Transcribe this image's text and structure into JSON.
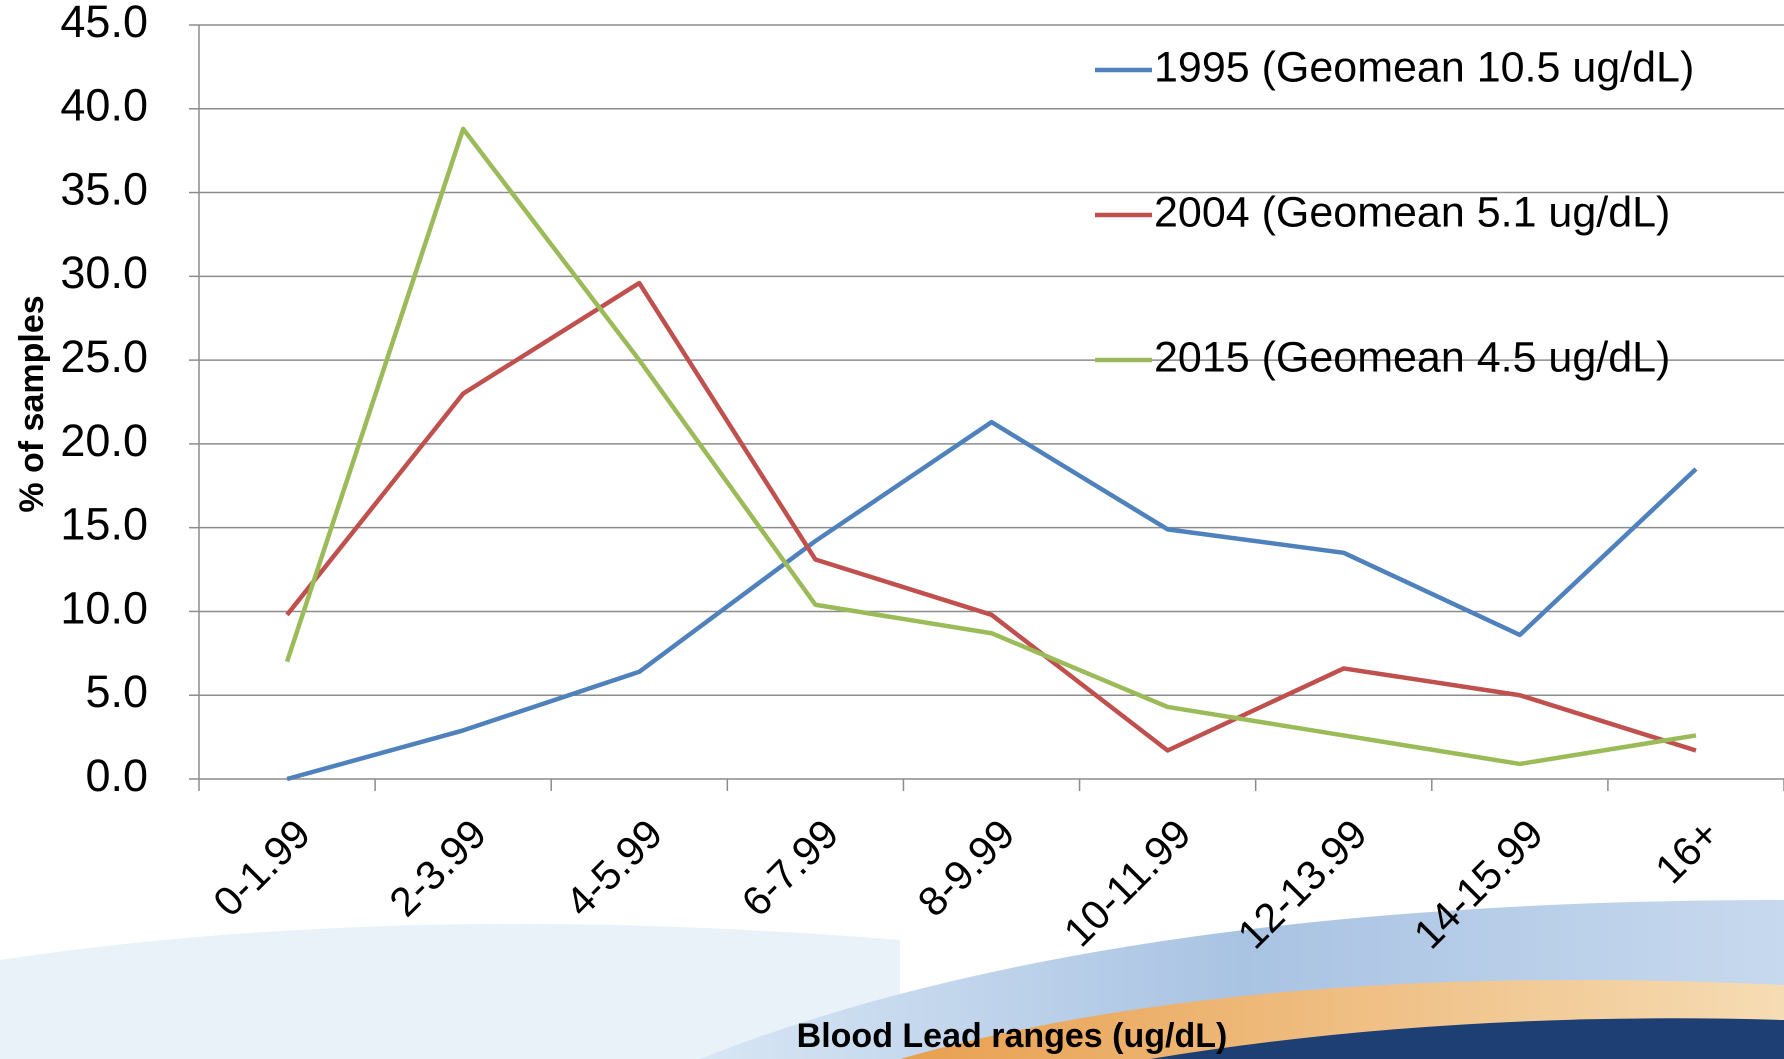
{
  "chart_data": {
    "type": "line",
    "x_label": "Blood Lead ranges (ug/dL)",
    "y_label": "% of samples",
    "categories": [
      "0-1.99",
      "2-3.99",
      "4-5.99",
      "6-7.99",
      "8-9.99",
      "10-11.99",
      "12-13.99",
      "14-15.99",
      "16+"
    ],
    "series": [
      {
        "name": "1995 (Geomean 10.5 ug/dL)",
        "color": "#4f81bd",
        "values": [
          0,
          2.9,
          6.4,
          14.2,
          21.3,
          14.9,
          13.5,
          8.6,
          18.5
        ]
      },
      {
        "name": "2004 (Geomean 5.1 ug/dL)",
        "color": "#c0504d",
        "values": [
          9.8,
          23.0,
          29.6,
          13.1,
          9.8,
          1.7,
          6.6,
          5.0,
          1.7
        ]
      },
      {
        "name": "2015 (Geomean 4.5 ug/dL)",
        "color": "#9bbb59",
        "values": [
          7.0,
          38.8,
          25.0,
          10.4,
          8.7,
          4.3,
          2.6,
          0.9,
          2.6
        ]
      }
    ],
    "ylim": [
      0,
      45
    ],
    "yticks": [
      {
        "value": 0,
        "label": "0.0"
      },
      {
        "value": 5,
        "label": "5.0"
      },
      {
        "value": 10,
        "label": "10.0"
      },
      {
        "value": 15,
        "label": "15.0"
      },
      {
        "value": 20,
        "label": "20.0"
      },
      {
        "value": 25,
        "label": "25.0"
      },
      {
        "value": 30,
        "label": "30.0"
      },
      {
        "value": 35,
        "label": "35.0"
      },
      {
        "value": 40,
        "label": "40.0"
      },
      {
        "value": 45,
        "label": "45.0"
      }
    ],
    "grid": true,
    "legend": "top-right"
  }
}
